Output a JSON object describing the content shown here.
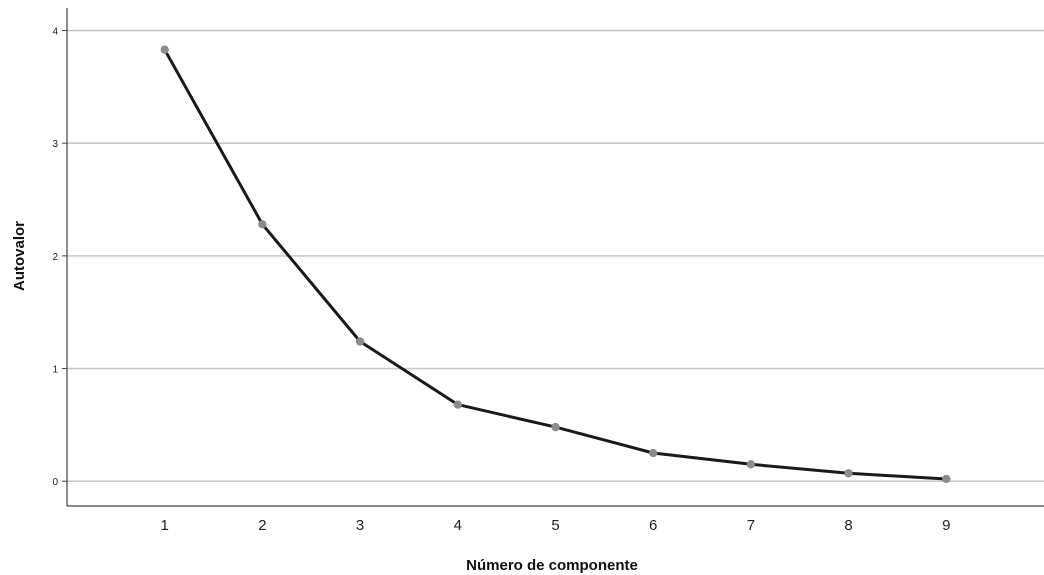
{
  "chart_data": {
    "type": "line",
    "title": "",
    "xlabel": "Número de componente",
    "ylabel": "Autovalor",
    "x": [
      1,
      2,
      3,
      4,
      5,
      6,
      7,
      8,
      9
    ],
    "series": [
      {
        "values": [
          3.83,
          2.28,
          1.24,
          0.68,
          0.48,
          0.25,
          0.15,
          0.07,
          0.02
        ]
      }
    ],
    "xlim": [
      0.0,
      10.0
    ],
    "ylim": [
      -0.22,
      4.2
    ],
    "yticks": [
      0,
      1,
      2,
      3,
      4
    ],
    "yticklabels": [
      "0",
      "1",
      "2",
      "3",
      "4"
    ],
    "xticks": [
      1,
      2,
      3,
      4,
      5,
      6,
      7,
      8,
      9
    ],
    "xticklabels": [
      "1",
      "2",
      "3",
      "4",
      "5",
      "6",
      "7",
      "8",
      "9"
    ],
    "grid": "horizontal",
    "legend": "none",
    "colors": {
      "line": "#1a1a1a",
      "marker": "#8c8c8c",
      "grid": "#c8c8c8",
      "axis": "#444444"
    }
  }
}
